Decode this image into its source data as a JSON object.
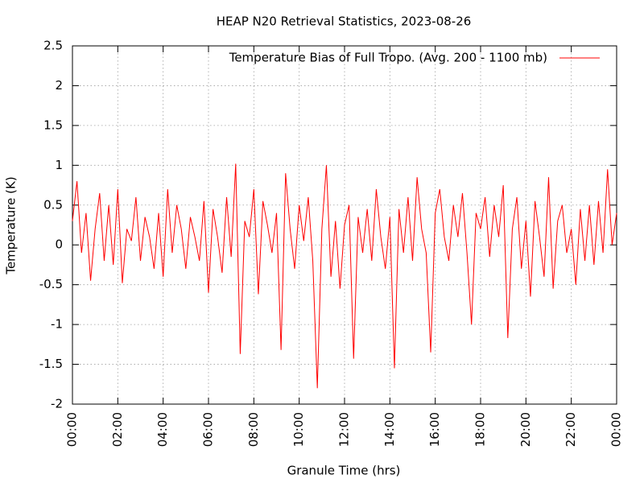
{
  "chart_data": {
    "type": "line",
    "title": "HEAP N20 Retrieval Statistics, 2023-08-26",
    "x_label": "Granule Time (hrs)",
    "y_label": "Temperature (K)",
    "xlim": [
      0,
      24
    ],
    "xticks": [
      {
        "value": 0,
        "label": "00:00"
      },
      {
        "value": 2,
        "label": "02:00"
      },
      {
        "value": 4,
        "label": "04:00"
      },
      {
        "value": 6,
        "label": "06:00"
      },
      {
        "value": 8,
        "label": "08:00"
      },
      {
        "value": 10,
        "label": "10:00"
      },
      {
        "value": 12,
        "label": "12:00"
      },
      {
        "value": 14,
        "label": "14:00"
      },
      {
        "value": 16,
        "label": "16:00"
      },
      {
        "value": 18,
        "label": "18:00"
      },
      {
        "value": 20,
        "label": "20:00"
      },
      {
        "value": 22,
        "label": "22:00"
      },
      {
        "value": 24,
        "label": "00:00"
      }
    ],
    "ylim": [
      -2,
      2.5
    ],
    "yticks": [
      -2,
      -1.5,
      -1,
      -0.5,
      0,
      0.5,
      1,
      1.5,
      2,
      2.5
    ],
    "grid": true,
    "legend_position": "top-right",
    "x": [
      0,
      0.2,
      0.4,
      0.6,
      0.8,
      1,
      1.2,
      1.4,
      1.6,
      1.8,
      2,
      2.2,
      2.4,
      2.6,
      2.8,
      3,
      3.2,
      3.4,
      3.6,
      3.8,
      4,
      4.2,
      4.4,
      4.6,
      4.8,
      5,
      5.2,
      5.4,
      5.6,
      5.8,
      6,
      6.2,
      6.4,
      6.6,
      6.8,
      7,
      7.2,
      7.4,
      7.6,
      7.8,
      8,
      8.2,
      8.4,
      8.6,
      8.8,
      9,
      9.2,
      9.4,
      9.6,
      9.8,
      10,
      10.2,
      10.4,
      10.6,
      10.8,
      11,
      11.2,
      11.4,
      11.6,
      11.8,
      12,
      12.2,
      12.4,
      12.6,
      12.8,
      13,
      13.2,
      13.4,
      13.6,
      13.8,
      14,
      14.2,
      14.4,
      14.6,
      14.8,
      15,
      15.2,
      15.4,
      15.6,
      15.8,
      16,
      16.2,
      16.4,
      16.6,
      16.8,
      17,
      17.2,
      17.4,
      17.6,
      17.8,
      18,
      18.2,
      18.4,
      18.6,
      18.8,
      19,
      19.2,
      19.4,
      19.6,
      19.8,
      20,
      20.2,
      20.4,
      20.6,
      20.8,
      21,
      21.2,
      21.4,
      21.6,
      21.8,
      22,
      22.2,
      22.4,
      22.6,
      22.8,
      23,
      23.2,
      23.4,
      23.6,
      23.8,
      24
    ],
    "series": [
      {
        "name": "Temperature Bias of Full Tropo. (Avg. 200 - 1100 mb)",
        "color": "#ff0000",
        "values": [
          0.3,
          0.8,
          -0.1,
          0.4,
          -0.45,
          0.2,
          0.65,
          -0.2,
          0.5,
          -0.25,
          0.7,
          -0.48,
          0.2,
          0.05,
          0.6,
          -0.2,
          0.35,
          0.1,
          -0.3,
          0.4,
          -0.4,
          0.7,
          -0.1,
          0.5,
          0.2,
          -0.3,
          0.35,
          0.1,
          -0.2,
          0.55,
          -0.6,
          0.45,
          0.1,
          -0.35,
          0.6,
          -0.15,
          1.02,
          -1.37,
          0.3,
          0.1,
          0.7,
          -0.62,
          0.55,
          0.25,
          -0.1,
          0.4,
          -1.32,
          0.9,
          0.2,
          -0.3,
          0.5,
          0.05,
          0.6,
          -0.2,
          -1.8,
          0.2,
          1.0,
          -0.4,
          0.3,
          -0.55,
          0.25,
          0.5,
          -1.43,
          0.35,
          -0.1,
          0.45,
          -0.2,
          0.7,
          0.1,
          -0.3,
          0.35,
          -1.55,
          0.45,
          -0.1,
          0.6,
          -0.2,
          0.85,
          0.2,
          -0.1,
          -1.35,
          0.4,
          0.7,
          0.1,
          -0.2,
          0.5,
          0.1,
          0.65,
          -0.1,
          -1.0,
          0.4,
          0.2,
          0.6,
          -0.15,
          0.5,
          0.1,
          0.75,
          -1.17,
          0.2,
          0.6,
          -0.3,
          0.3,
          -0.65,
          0.55,
          0.1,
          -0.4,
          0.85,
          -0.55,
          0.3,
          0.5,
          -0.1,
          0.2,
          -0.5,
          0.45,
          -0.2,
          0.5,
          -0.25,
          0.55,
          -0.1,
          0.95,
          0.0,
          0.4
        ]
      }
    ]
  }
}
